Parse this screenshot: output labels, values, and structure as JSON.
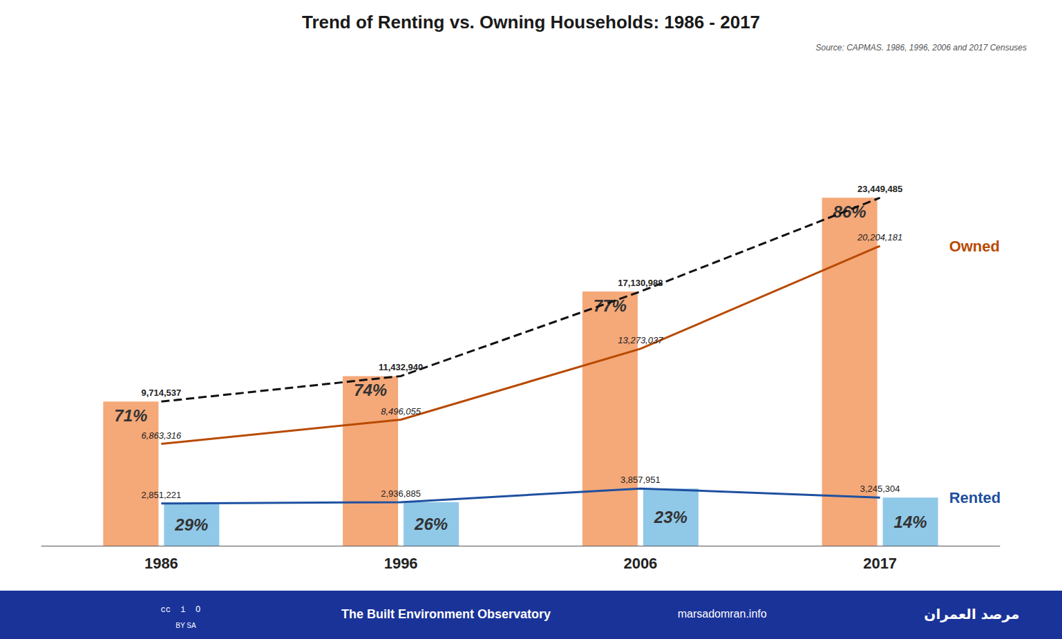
{
  "chart_data": {
    "type": "bar",
    "title": "Trend of Renting vs. Owning Households: 1986 - 2017",
    "source": "Source: CAPMAS. 1986, 1996, 2006 and 2017 Censuses",
    "categories": [
      "1986",
      "1996",
      "2006",
      "2017"
    ],
    "series": [
      {
        "type": "bar",
        "color": "#F5A878",
        "values": [
          9714537,
          11432940,
          17130988,
          23449485
        ],
        "shares": [
          71,
          74,
          77,
          86
        ],
        "share_labels": [
          "71%",
          "74%",
          "77%",
          "86%"
        ]
      },
      {
        "type": "bar",
        "color": "#90C8E8",
        "values": [
          2851221,
          2936885,
          3857951,
          3245304
        ],
        "shares": [
          29,
          26,
          23,
          14
        ],
        "share_labels": [
          "29%",
          "26%",
          "23%",
          "14%"
        ]
      },
      {
        "type": "line",
        "color": "#111111",
        "line_style": "dashed",
        "values": [
          9714537,
          11432940,
          17130988,
          23449485
        ],
        "value_labels": [
          "9,714,537",
          "11,432,940",
          "17,130,988",
          "23,449,485"
        ],
        "data_labels": true
      },
      {
        "name": "Owned",
        "type": "line",
        "color": "#B84A00",
        "line_style": "solid",
        "values": [
          6863316,
          8496055,
          13273037,
          20204181
        ],
        "value_labels": [
          "6,863,316",
          "8,496,055",
          "13,273,037",
          "20,204,181"
        ],
        "data_labels": true
      },
      {
        "name": "Rented",
        "type": "line",
        "color": "#1E50A0",
        "line_style": "solid",
        "values": [
          2851221,
          2936885,
          3857951,
          3245304
        ],
        "value_labels": [
          "2,851,221",
          "2,936,885",
          "3,857,951",
          "3,245,304"
        ],
        "data_labels": true
      }
    ],
    "ylim": [
      0,
      31656804.75
    ],
    "tick_labels": "x",
    "grid": false,
    "footer": [
      "cc  i  O",
      "BY SA",
      "The Built Environment Observatory",
      "marsadomran.info",
      "مرصد العمران"
    ],
    "footer_color": "#1A3399"
  }
}
